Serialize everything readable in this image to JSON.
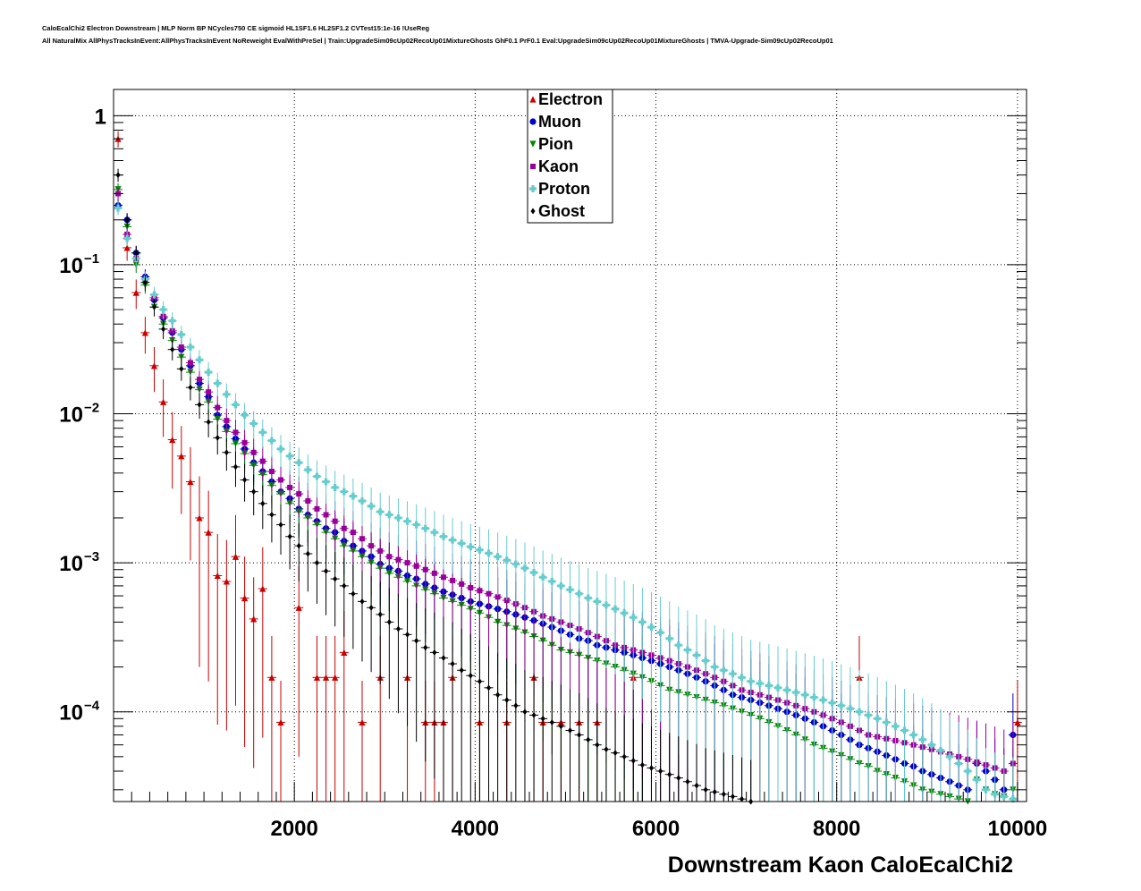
{
  "title_lines": [
    "CaloEcalChi2 Electron Downstream | MLP Norm BP NCycles750 CE sigmoid HL1SF1.6 HL2SF1.2 CVTest15:1e-16 !UseReg",
    "All NaturalMix AllPhysTracksInEvent:AllPhysTracksInEvent NoReweight EvalWithPreSel | Train:UpgradeSim09cUp02RecoUp01MixtureGhosts GhF0.1 PrF0.1 Eval:UpgradeSim09cUp02RecoUp01MixtureGhosts | TMVA-Upgrade-Sim09cUp02RecoUp01"
  ],
  "chart_data": {
    "type": "scatter",
    "title": "",
    "xlabel": "Downstream Kaon CaloEcalChi2",
    "ylabel": "",
    "xlim": [
      0,
      10100
    ],
    "ylim": [
      2.5e-05,
      1.5
    ],
    "log_y": true,
    "grid": true,
    "legend_position": "top-center",
    "x_ticks": [
      2000,
      4000,
      6000,
      8000,
      10000
    ],
    "x_tick_labels": [
      "2000",
      "4000",
      "6000",
      "8000",
      "10000"
    ],
    "y_ticks": [
      1,
      0.1,
      0.01,
      0.001,
      0.0001
    ],
    "y_tick_base": [
      "1",
      "10",
      "10",
      "10",
      "10"
    ],
    "y_tick_exp": [
      "",
      "−1",
      "−2",
      "−3",
      "−4"
    ],
    "series": [
      {
        "name": "Electron",
        "color": "#cc0000",
        "marker": "triangle-up",
        "x": [
          50,
          150,
          250,
          350,
          450,
          550,
          650,
          750,
          850,
          950,
          1050,
          1150,
          1250,
          1350,
          1450,
          1550,
          1650,
          1750,
          1850,
          2050,
          2250,
          2350,
          2450,
          2550,
          2750,
          2950,
          3250,
          3450,
          3550,
          3650,
          3750,
          4050,
          4350,
          4650,
          4750,
          4950,
          5150,
          5350,
          5750,
          8250,
          10000
        ],
        "y": [
          0.7,
          0.13,
          0.065,
          0.035,
          0.021,
          0.012,
          0.0067,
          0.0052,
          0.0035,
          0.002,
          0.0016,
          0.00082,
          0.00075,
          0.0011,
          0.00058,
          0.00042,
          0.00067,
          0.00017,
          8.5e-05,
          0.0005,
          0.00017,
          0.00017,
          0.00017,
          0.00025,
          8.5e-05,
          0.00017,
          0.00017,
          8.5e-05,
          8.5e-05,
          8.5e-05,
          0.00017,
          8.5e-05,
          8.5e-05,
          0.00017,
          8.5e-05,
          8.5e-05,
          8.5e-05,
          8.5e-05,
          0.00017,
          0.00017,
          8.5e-05
        ]
      },
      {
        "name": "Muon",
        "color": "#0000cc",
        "marker": "circle",
        "x": [
          50,
          150,
          250,
          350,
          450,
          550,
          650,
          750,
          850,
          950,
          1050,
          1150,
          1250,
          1350,
          1450,
          1550,
          1650,
          1750,
          1850,
          1950,
          2050,
          2150,
          2250,
          2350,
          2450,
          2550,
          2650,
          2750,
          2850,
          2950,
          3050,
          3150,
          3250,
          3350,
          3450,
          3550,
          3650,
          3750,
          3850,
          3950,
          4050,
          4150,
          4250,
          4350,
          4450,
          4550,
          4650,
          4750,
          4850,
          4950,
          5050,
          5150,
          5250,
          5350,
          5450,
          5550,
          5650,
          5750,
          5850,
          5950,
          6050,
          6150,
          6250,
          6350,
          6450,
          6550,
          6650,
          6750,
          6850,
          6950,
          7050,
          7150,
          7250,
          7350,
          7450,
          7550,
          7650,
          7750,
          7850,
          7950,
          8050,
          8150,
          8250,
          8350,
          8450,
          8550,
          8650,
          8750,
          8850,
          8950,
          9050,
          9150,
          9250,
          9350,
          9450,
          9550,
          9650,
          9750,
          9850,
          9950
        ],
        "y": [
          0.25,
          0.2,
          0.12,
          0.083,
          0.058,
          0.044,
          0.035,
          0.027,
          0.021,
          0.016,
          0.013,
          0.0098,
          0.0082,
          0.0068,
          0.0058,
          0.0047,
          0.0041,
          0.0035,
          0.003,
          0.0027,
          0.0023,
          0.0021,
          0.0019,
          0.0017,
          0.0016,
          0.0014,
          0.0013,
          0.0012,
          0.0011,
          0.00098,
          0.00092,
          0.00088,
          0.00082,
          0.00078,
          0.00072,
          0.00068,
          0.00064,
          0.00061,
          0.00058,
          0.00055,
          0.00053,
          0.00051,
          0.00049,
          0.00047,
          0.00045,
          0.00043,
          0.00041,
          0.00039,
          0.00037,
          0.00035,
          0.00033,
          0.00031,
          0.0003,
          0.00028,
          0.00027,
          0.00026,
          0.00025,
          0.00024,
          0.00023,
          0.00022,
          0.00021,
          0.0002,
          0.00019,
          0.00018,
          0.00017,
          0.00016,
          0.00015,
          0.00014,
          0.00013,
          0.000125,
          0.00012,
          0.000115,
          0.00011,
          0.000105,
          0.0001,
          9.5e-05,
          9e-05,
          8.5e-05,
          8e-05,
          7.5e-05,
          7e-05,
          6.5e-05,
          6e-05,
          5.7e-05,
          5.4e-05,
          5.1e-05,
          4.8e-05,
          4.5e-05,
          4.3e-05,
          4e-05,
          3.8e-05,
          3.6e-05,
          3.4e-05,
          3.2e-05,
          3e-05,
          4.5e-05,
          4e-05,
          3.5e-05,
          3e-05,
          7e-05
        ]
      },
      {
        "name": "Pion",
        "color": "#008800",
        "marker": "triangle-down",
        "x": [
          50,
          150,
          250,
          350,
          450,
          550,
          650,
          750,
          850,
          950,
          1050,
          1150,
          1250,
          1350,
          1450,
          1550,
          1650,
          1750,
          1850,
          1950,
          2050,
          2150,
          2250,
          2350,
          2450,
          2550,
          2650,
          2750,
          2850,
          2950,
          3050,
          3150,
          3250,
          3350,
          3450,
          3550,
          3650,
          3750,
          3850,
          3950,
          4050,
          4150,
          4250,
          4350,
          4450,
          4550,
          4650,
          4750,
          4850,
          4950,
          5050,
          5150,
          5250,
          5350,
          5450,
          5550,
          5650,
          5750,
          5850,
          5950,
          6050,
          6150,
          6250,
          6350,
          6450,
          6550,
          6650,
          6750,
          6850,
          6950,
          7050,
          7150,
          7250,
          7350,
          7450,
          7550,
          7650,
          7750,
          7850,
          7950,
          8050,
          8150,
          8250,
          8350,
          8450,
          8550,
          8650,
          8750,
          8850,
          8950,
          9050,
          9150,
          9250,
          9350,
          9450,
          9550,
          9650,
          9750,
          9850,
          9950
        ],
        "y": [
          0.32,
          0.18,
          0.1,
          0.073,
          0.052,
          0.04,
          0.031,
          0.024,
          0.019,
          0.0145,
          0.012,
          0.0092,
          0.0076,
          0.0063,
          0.0054,
          0.0045,
          0.0039,
          0.0033,
          0.0029,
          0.0025,
          0.0022,
          0.002,
          0.0018,
          0.0016,
          0.00145,
          0.0013,
          0.0012,
          0.0011,
          0.001,
          0.00092,
          0.00085,
          0.0008,
          0.00075,
          0.0007,
          0.00066,
          0.00062,
          0.00058,
          0.00055,
          0.00052,
          0.00049,
          0.00046,
          0.00043,
          0.0004,
          0.00038,
          0.00036,
          0.00034,
          0.00032,
          0.0003,
          0.00028,
          0.00026,
          0.00025,
          0.00024,
          0.00023,
          0.00022,
          0.00021,
          0.0002,
          0.00019,
          0.00018,
          0.00017,
          0.00016,
          0.00015,
          0.00014,
          0.000135,
          0.00013,
          0.000125,
          0.00012,
          0.000115,
          0.00011,
          0.000105,
          0.0001,
          9.5e-05,
          9e-05,
          8.5e-05,
          8e-05,
          7.5e-05,
          7e-05,
          6.5e-05,
          6e-05,
          5.7e-05,
          5.4e-05,
          5.1e-05,
          4.8e-05,
          4.5e-05,
          4.3e-05,
          4e-05,
          3.8e-05,
          3.6e-05,
          3.4e-05,
          3.2e-05,
          3e-05,
          2.9e-05,
          2.8e-05,
          2.7e-05,
          2.6e-05,
          2.5e-05,
          3.5e-05,
          3e-05,
          2.8e-05,
          2.7e-05,
          3e-05
        ]
      },
      {
        "name": "Kaon",
        "color": "#990099",
        "marker": "square",
        "x": [
          50,
          150,
          250,
          350,
          450,
          550,
          650,
          750,
          850,
          950,
          1050,
          1150,
          1250,
          1350,
          1450,
          1550,
          1650,
          1750,
          1850,
          1950,
          2050,
          2150,
          2250,
          2350,
          2450,
          2550,
          2650,
          2750,
          2850,
          2950,
          3050,
          3150,
          3250,
          3350,
          3450,
          3550,
          3650,
          3750,
          3850,
          3950,
          4050,
          4150,
          4250,
          4350,
          4450,
          4550,
          4650,
          4750,
          4850,
          4950,
          5050,
          5150,
          5250,
          5350,
          5450,
          5550,
          5650,
          5750,
          5850,
          5950,
          6050,
          6150,
          6250,
          6350,
          6450,
          6550,
          6650,
          6750,
          6850,
          6950,
          7050,
          7150,
          7250,
          7350,
          7450,
          7550,
          7650,
          7750,
          7850,
          7950,
          8050,
          8150,
          8250,
          8350,
          8450,
          8550,
          8650,
          8750,
          8850,
          8950,
          9050,
          9150,
          9250,
          9350,
          9450,
          9550,
          9650,
          9750,
          9850,
          9950
        ],
        "y": [
          0.3,
          0.16,
          0.11,
          0.08,
          0.06,
          0.045,
          0.036,
          0.028,
          0.022,
          0.017,
          0.014,
          0.011,
          0.009,
          0.0075,
          0.0064,
          0.0055,
          0.0048,
          0.0041,
          0.0036,
          0.0032,
          0.0029,
          0.0026,
          0.0023,
          0.0021,
          0.0019,
          0.0017,
          0.0016,
          0.00145,
          0.0013,
          0.0012,
          0.0011,
          0.00105,
          0.001,
          0.00095,
          0.0009,
          0.00085,
          0.0008,
          0.00076,
          0.00072,
          0.00068,
          0.00065,
          0.00062,
          0.00059,
          0.00056,
          0.00053,
          0.0005,
          0.00047,
          0.00044,
          0.00042,
          0.0004,
          0.00038,
          0.00036,
          0.00034,
          0.00032,
          0.0003,
          0.00028,
          0.00027,
          0.00026,
          0.00025,
          0.00024,
          0.00023,
          0.00022,
          0.00021,
          0.0002,
          0.00019,
          0.00018,
          0.00017,
          0.00016,
          0.00015,
          0.00014,
          0.000135,
          0.00013,
          0.000125,
          0.00012,
          0.000115,
          0.00011,
          0.000105,
          0.0001,
          9.5e-05,
          9e-05,
          8.5e-05,
          8e-05,
          7.5e-05,
          7e-05,
          6.8e-05,
          6.6e-05,
          6.4e-05,
          6.2e-05,
          6e-05,
          5.8e-05,
          5.6e-05,
          5.4e-05,
          5.2e-05,
          5e-05,
          4.8e-05,
          4.6e-05,
          4.4e-05,
          4.2e-05,
          4e-05,
          4.5e-05
        ]
      },
      {
        "name": "Proton",
        "color": "#66cccc",
        "marker": "cross",
        "x": [
          50,
          150,
          250,
          350,
          450,
          550,
          650,
          750,
          850,
          950,
          1050,
          1150,
          1250,
          1350,
          1450,
          1550,
          1650,
          1750,
          1850,
          1950,
          2050,
          2150,
          2250,
          2350,
          2450,
          2550,
          2650,
          2750,
          2850,
          2950,
          3050,
          3150,
          3250,
          3350,
          3450,
          3550,
          3650,
          3750,
          3850,
          3950,
          4050,
          4150,
          4250,
          4350,
          4450,
          4550,
          4650,
          4750,
          4850,
          4950,
          5050,
          5150,
          5250,
          5350,
          5450,
          5550,
          5650,
          5750,
          5850,
          5950,
          6050,
          6150,
          6250,
          6350,
          6450,
          6550,
          6650,
          6750,
          6850,
          6950,
          7050,
          7150,
          7250,
          7350,
          7450,
          7550,
          7650,
          7750,
          7850,
          7950,
          8050,
          8150,
          8250,
          8350,
          8450,
          8550,
          8650,
          8750,
          8850,
          8950,
          9050,
          9150,
          9250,
          9350,
          9450,
          9550,
          9650,
          9750,
          9850,
          9950
        ],
        "y": [
          0.24,
          0.15,
          0.11,
          0.08,
          0.063,
          0.05,
          0.042,
          0.034,
          0.028,
          0.023,
          0.019,
          0.016,
          0.0135,
          0.0115,
          0.0098,
          0.0086,
          0.0075,
          0.0066,
          0.0058,
          0.0052,
          0.0047,
          0.0042,
          0.0038,
          0.0035,
          0.0032,
          0.003,
          0.0028,
          0.0026,
          0.0024,
          0.0022,
          0.0021,
          0.002,
          0.0019,
          0.0018,
          0.0017,
          0.0016,
          0.0015,
          0.00142,
          0.00135,
          0.00128,
          0.00122,
          0.00116,
          0.0011,
          0.00104,
          0.00098,
          0.00092,
          0.00086,
          0.0008,
          0.00075,
          0.0007,
          0.00066,
          0.00062,
          0.00058,
          0.00055,
          0.00052,
          0.00049,
          0.00046,
          0.00043,
          0.0004,
          0.00037,
          0.00034,
          0.00031,
          0.00028,
          0.00026,
          0.00024,
          0.00022,
          0.0002,
          0.00019,
          0.00018,
          0.00017,
          0.00016,
          0.000155,
          0.00015,
          0.000145,
          0.00014,
          0.000135,
          0.00013,
          0.000125,
          0.00012,
          0.000115,
          0.00011,
          0.000105,
          0.0001,
          9.5e-05,
          9e-05,
          8.5e-05,
          8e-05,
          7.5e-05,
          7e-05,
          6.5e-05,
          6e-05,
          5.5e-05,
          5e-05,
          4.5e-05,
          4e-05,
          3.5e-05,
          3e-05,
          2.8e-05,
          2.7e-05,
          2.6e-05
        ]
      },
      {
        "name": "Ghost",
        "color": "#000000",
        "marker": "diamond",
        "x": [
          50,
          150,
          250,
          350,
          450,
          550,
          650,
          750,
          850,
          950,
          1050,
          1150,
          1250,
          1350,
          1450,
          1550,
          1650,
          1750,
          1850,
          1950,
          2050,
          2150,
          2250,
          2350,
          2450,
          2550,
          2650,
          2750,
          2850,
          2950,
          3050,
          3150,
          3250,
          3350,
          3450,
          3550,
          3650,
          3750,
          3850,
          3950,
          4050,
          4150,
          4250,
          4350,
          4450,
          4550,
          4650,
          4750,
          4850,
          4950,
          5050,
          5150,
          5250,
          5350,
          5450,
          5550,
          5650,
          5750,
          5850,
          5950,
          6050,
          6150,
          6250,
          6350,
          6450,
          6550,
          6650,
          6750,
          6850,
          6950,
          7050
        ],
        "y": [
          0.4,
          0.2,
          0.12,
          0.076,
          0.052,
          0.037,
          0.027,
          0.02,
          0.015,
          0.0115,
          0.0088,
          0.0069,
          0.0055,
          0.0044,
          0.0036,
          0.003,
          0.0025,
          0.0021,
          0.0018,
          0.0015,
          0.0013,
          0.00115,
          0.001,
          0.00088,
          0.00078,
          0.0007,
          0.00062,
          0.00055,
          0.0005,
          0.00045,
          0.0004,
          0.00036,
          0.00033,
          0.0003,
          0.00027,
          0.00025,
          0.00023,
          0.00021,
          0.00019,
          0.000175,
          0.00016,
          0.000145,
          0.00013,
          0.00012,
          0.00011,
          0.0001,
          9.5e-05,
          9e-05,
          8.5e-05,
          8e-05,
          7.5e-05,
          7e-05,
          6.5e-05,
          6e-05,
          5.6e-05,
          5.3e-05,
          5e-05,
          4.7e-05,
          4.4e-05,
          4.2e-05,
          4e-05,
          3.8e-05,
          3.6e-05,
          3.4e-05,
          3.2e-05,
          3e-05,
          2.9e-05,
          2.8e-05,
          2.7e-05,
          2.6e-05,
          2.5e-05
        ]
      }
    ]
  }
}
